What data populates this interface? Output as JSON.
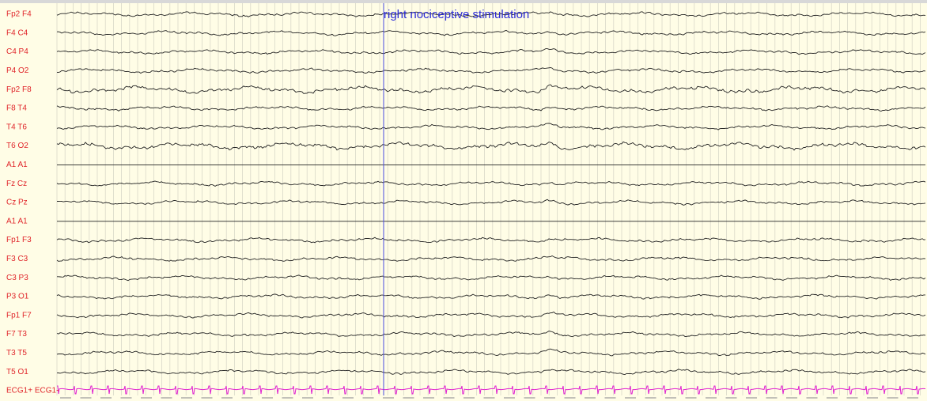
{
  "channels": [
    "Fp2 F4",
    "F4 C4",
    "C4 P4",
    "P4 O2",
    "Fp2 F8",
    "F8 T4",
    "T4 T6",
    "T6 O2",
    "A1 A1",
    "Fz Cz",
    "Cz Pz",
    "A1 A1",
    "Fp1 F3",
    "F3 C3",
    "C3 P3",
    "P3 O1",
    "Fp1 F7",
    "F7 T3",
    "T3 T5",
    "T5 O1",
    "ECG1+ ECG1-"
  ],
  "annotation": {
    "text": "right nociceptive stimulation"
  }
}
